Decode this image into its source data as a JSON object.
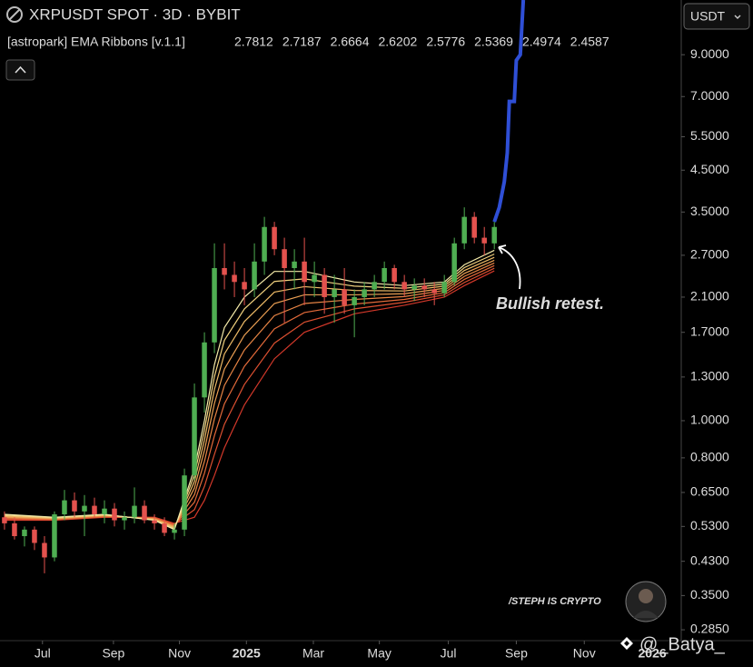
{
  "chart_data": {
    "type": "candlestick",
    "title": "XRPUSDT SPOT · 3D · BYBIT",
    "currency": "USDT",
    "scale": "log",
    "up_color": "#4fae52",
    "down_color": "#e4524e",
    "candles": {
      "open": [
        0.56,
        0.54,
        0.5,
        0.52,
        0.48,
        0.44,
        0.57,
        0.62,
        0.58,
        0.6,
        0.57,
        0.59,
        0.55,
        0.56,
        0.6,
        0.55,
        0.54,
        0.51,
        0.52,
        0.72,
        1.15,
        1.6,
        2.5,
        2.4,
        2.3,
        2.2,
        2.6,
        3.2,
        2.8,
        2.5,
        2.6,
        2.3,
        2.4,
        2.1,
        2.2,
        2.0,
        2.1,
        2.2,
        2.3,
        2.5,
        2.3,
        2.2,
        2.25,
        2.2,
        2.15,
        2.3,
        2.9,
        3.4,
        3.0,
        2.9
      ],
      "high": [
        0.58,
        0.56,
        0.53,
        0.53,
        0.5,
        0.58,
        0.66,
        0.65,
        0.64,
        0.63,
        0.62,
        0.61,
        0.58,
        0.67,
        0.62,
        0.57,
        0.56,
        0.54,
        0.75,
        1.25,
        1.7,
        2.9,
        2.9,
        2.6,
        2.5,
        2.9,
        3.4,
        3.3,
        3.0,
        2.8,
        3.0,
        2.6,
        2.5,
        2.4,
        2.5,
        2.2,
        2.3,
        2.4,
        2.6,
        2.55,
        2.4,
        2.35,
        2.35,
        2.3,
        2.4,
        3.0,
        3.6,
        3.5,
        3.2,
        3.3
      ],
      "low": [
        0.52,
        0.49,
        0.47,
        0.46,
        0.4,
        0.43,
        0.55,
        0.56,
        0.5,
        0.56,
        0.54,
        0.53,
        0.52,
        0.54,
        0.54,
        0.52,
        0.5,
        0.49,
        0.5,
        0.7,
        1.05,
        1.5,
        2.2,
        2.1,
        2.0,
        2.1,
        2.4,
        2.7,
        1.8,
        2.2,
        2.0,
        2.1,
        1.9,
        1.8,
        1.9,
        1.65,
        2.0,
        2.1,
        2.2,
        2.2,
        2.1,
        2.05,
        2.1,
        2.0,
        2.1,
        2.25,
        2.8,
        2.9,
        2.7,
        2.8
      ],
      "close": [
        0.54,
        0.5,
        0.52,
        0.48,
        0.44,
        0.57,
        0.62,
        0.58,
        0.6,
        0.57,
        0.59,
        0.55,
        0.56,
        0.6,
        0.55,
        0.54,
        0.51,
        0.52,
        0.72,
        1.15,
        1.6,
        2.5,
        2.4,
        2.3,
        2.2,
        2.6,
        3.2,
        2.8,
        2.5,
        2.6,
        2.3,
        2.4,
        2.1,
        2.2,
        2.0,
        2.1,
        2.2,
        2.3,
        2.5,
        2.3,
        2.2,
        2.25,
        2.2,
        2.15,
        2.3,
        2.9,
        3.4,
        3.0,
        2.9,
        3.2
      ]
    },
    "ema_ribbons": {
      "name": "[astropark] EMA Ribbons [v.1.1]",
      "x": [
        0,
        5,
        10,
        15,
        17,
        19,
        20,
        21,
        22,
        24,
        27,
        30,
        35,
        40,
        44,
        46,
        49
      ],
      "series": [
        {
          "color": "#f4eaa8",
          "values": [
            0.57,
            0.56,
            0.57,
            0.55,
            0.52,
            0.75,
            1.0,
            1.4,
            1.75,
            2.1,
            2.45,
            2.45,
            2.3,
            2.25,
            2.3,
            2.55,
            2.7812
          ]
        },
        {
          "color": "#f1d27f",
          "values": [
            0.567,
            0.559,
            0.569,
            0.551,
            0.523,
            0.723,
            0.946,
            1.303,
            1.621,
            1.957,
            2.307,
            2.343,
            2.243,
            2.214,
            2.271,
            2.507,
            2.7187
          ]
        },
        {
          "color": "#eebb67",
          "values": [
            0.564,
            0.557,
            0.567,
            0.553,
            0.526,
            0.695,
            0.891,
            1.206,
            1.493,
            1.814,
            2.164,
            2.236,
            2.186,
            2.179,
            2.243,
            2.464,
            2.6664
          ]
        },
        {
          "color": "#eca054",
          "values": [
            0.561,
            0.556,
            0.566,
            0.554,
            0.529,
            0.668,
            0.837,
            1.109,
            1.364,
            1.671,
            2.021,
            2.129,
            2.129,
            2.143,
            2.214,
            2.421,
            2.6202
          ]
        },
        {
          "color": "#e88545",
          "values": [
            0.559,
            0.554,
            0.564,
            0.556,
            0.531,
            0.641,
            0.783,
            1.011,
            1.236,
            1.529,
            1.879,
            2.021,
            2.071,
            2.107,
            2.186,
            2.379,
            2.5776
          ]
        },
        {
          "color": "#e36a3a",
          "values": [
            0.556,
            0.553,
            0.563,
            0.557,
            0.534,
            0.613,
            0.729,
            0.914,
            1.107,
            1.386,
            1.736,
            1.914,
            2.014,
            2.071,
            2.157,
            2.336,
            2.5369
          ]
        },
        {
          "color": "#dc5031",
          "values": [
            0.553,
            0.551,
            0.561,
            0.559,
            0.537,
            0.586,
            0.674,
            0.817,
            0.979,
            1.243,
            1.593,
            1.807,
            1.957,
            2.036,
            2.129,
            2.293,
            2.4974
          ]
        },
        {
          "color": "#d2382a",
          "values": [
            0.55,
            0.55,
            0.56,
            0.56,
            0.54,
            0.56,
            0.62,
            0.72,
            0.85,
            1.1,
            1.45,
            1.7,
            1.9,
            2.0,
            2.1,
            2.25,
            2.4587
          ]
        }
      ]
    },
    "projection": {
      "color": "#2f4fd6",
      "x": [
        49,
        49.5,
        50,
        50.3,
        50.5,
        51,
        51.2,
        51.6,
        51.9
      ],
      "values": [
        3.3,
        3.6,
        4.2,
        5.0,
        6.8,
        6.8,
        8.7,
        9.0,
        12.5
      ]
    },
    "annotation": "Bullish retest.",
    "watermark": "/STEPH IS CRYPTO",
    "handle": "@_Batya_",
    "xlim": [
      -0.45,
      67.7
    ],
    "ylim": [
      0.267,
      12.5
    ],
    "yticks": [
      {
        "value": 9,
        "label": "9.0000"
      },
      {
        "value": 7,
        "label": "7.0000"
      },
      {
        "value": 5.5,
        "label": "5.5000"
      },
      {
        "value": 4.5,
        "label": "4.5000"
      },
      {
        "value": 3.5,
        "label": "3.5000"
      },
      {
        "value": 2.7,
        "label": "2.7000"
      },
      {
        "value": 2.1,
        "label": "2.1000"
      },
      {
        "value": 1.7,
        "label": "1.7000"
      },
      {
        "value": 1.3,
        "label": "1.3000"
      },
      {
        "value": 1,
        "label": "1.0000"
      },
      {
        "value": 0.8,
        "label": "0.8000"
      },
      {
        "value": 0.65,
        "label": "0.6500"
      },
      {
        "value": 0.53,
        "label": "0.5300"
      },
      {
        "value": 0.43,
        "label": "0.4300"
      },
      {
        "value": 0.35,
        "label": "0.3500"
      },
      {
        "value": 0.285,
        "label": "0.2850"
      }
    ],
    "xticks": [
      {
        "value": 3.8,
        "label": "Jul"
      },
      {
        "value": 10.9,
        "label": "Sep"
      },
      {
        "value": 17.5,
        "label": "Nov"
      },
      {
        "value": 24.2,
        "label": "2025"
      },
      {
        "value": 30.9,
        "label": "Mar"
      },
      {
        "value": 37.5,
        "label": "May"
      },
      {
        "value": 44.4,
        "label": "Jul"
      },
      {
        "value": 51.2,
        "label": "Sep"
      },
      {
        "value": 58,
        "label": "Nov"
      },
      {
        "value": 64.8,
        "label": "2026"
      }
    ]
  }
}
